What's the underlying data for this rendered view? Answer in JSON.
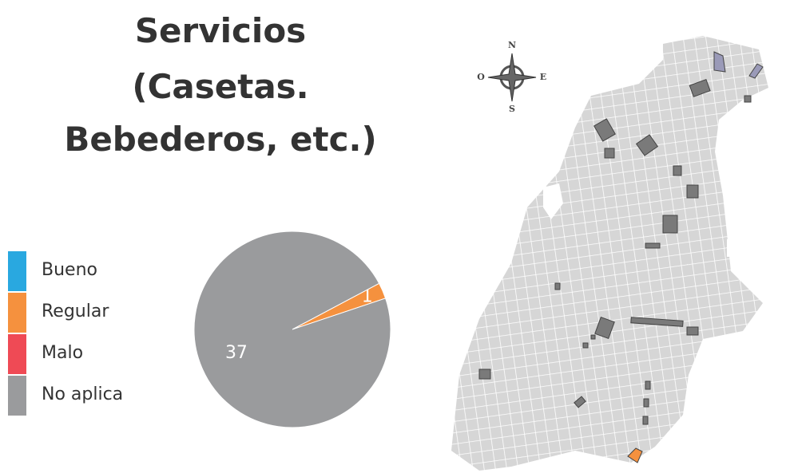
{
  "chart_data": {
    "type": "pie",
    "title": [
      "Servicios",
      "(Casetas.",
      "Bebederos, etc.)"
    ],
    "categories": [
      "Bueno",
      "Regular",
      "Malo",
      "No aplica"
    ],
    "values": [
      0,
      1,
      0,
      37
    ],
    "colors": [
      "#29a8e0",
      "#f5913e",
      "#ef4a55",
      "#9a9b9d"
    ]
  },
  "map": {
    "compass": {
      "north": "N",
      "south": "S",
      "east": "E",
      "west": "O"
    }
  }
}
